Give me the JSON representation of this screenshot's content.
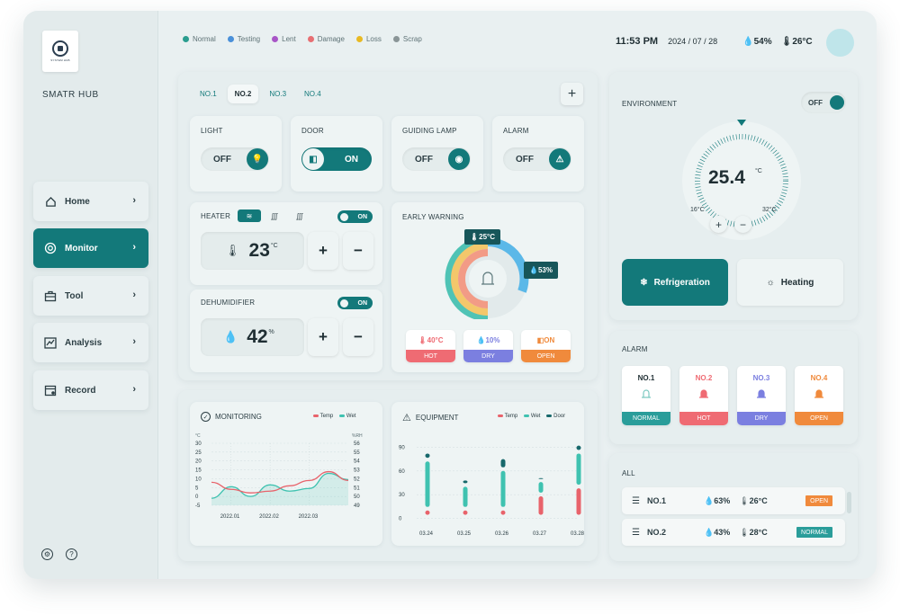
{
  "brand": {
    "logo_text": "SYSTEM HUB",
    "title": "SMATR HUB"
  },
  "nav": [
    {
      "label": "Home",
      "icon": "home-icon"
    },
    {
      "label": "Monitor",
      "icon": "power-icon",
      "active": true
    },
    {
      "label": "Tool",
      "icon": "toolbox-icon"
    },
    {
      "label": "Analysis",
      "icon": "chart-icon"
    },
    {
      "label": "Record",
      "icon": "calendar-icon"
    }
  ],
  "status_legend": [
    {
      "label": "Normal",
      "color": "#2a9d8f"
    },
    {
      "label": "Testing",
      "color": "#4a90d9"
    },
    {
      "label": "Lent",
      "color": "#a855c7"
    },
    {
      "label": "Damage",
      "color": "#e76f73"
    },
    {
      "label": "Loss",
      "color": "#e8b923"
    },
    {
      "label": "Scrap",
      "color": "#8a9597"
    }
  ],
  "header": {
    "time": "11:53 PM",
    "date": "2024 / 07 / 28",
    "humidity": "54%",
    "temperature": "26°C"
  },
  "tabs": [
    "NO.1",
    "NO.2",
    "NO.3",
    "NO.4"
  ],
  "devices": [
    {
      "label": "LIGHT",
      "state": "OFF",
      "icon": "bulb-icon"
    },
    {
      "label": "DOOR",
      "state": "ON",
      "icon": "door-icon"
    },
    {
      "label": "GUIDING LAMP",
      "state": "OFF",
      "icon": "lamp-icon"
    },
    {
      "label": "ALARM",
      "state": "OFF",
      "icon": "siren-icon"
    }
  ],
  "heater": {
    "label": "HEATER",
    "switch": "ON",
    "value": "23",
    "unit": "°C"
  },
  "dehumidifier": {
    "label": "DEHUMIDIFIER",
    "switch": "ON",
    "value": "42",
    "unit": "%"
  },
  "early_warning": {
    "label": "EARLY WARNING",
    "temp_badge": "25°C",
    "hum_badge": "53%",
    "tags": [
      {
        "value": "40°C",
        "status": "HOT",
        "color": "#ef6b73"
      },
      {
        "value": "10%",
        "status": "DRY",
        "color": "#7b7fe0"
      },
      {
        "value": "ON",
        "status": "OPEN",
        "color": "#f08a3c"
      }
    ]
  },
  "environment": {
    "label": "ENVIRONMENT",
    "switch": "OFF",
    "value": "25.4",
    "unit": "°C",
    "min": "16°C",
    "max": "32°C",
    "mode_cool": "Refrigeration",
    "mode_heat": "Heating"
  },
  "alarm": {
    "label": "ALARM",
    "items": [
      {
        "name": "NO.1",
        "status": "NORMAL",
        "color": "#2a9d9a"
      },
      {
        "name": "NO.2",
        "status": "HOT",
        "color": "#ef6b73"
      },
      {
        "name": "NO.3",
        "status": "DRY",
        "color": "#7b7fe0"
      },
      {
        "name": "NO.4",
        "status": "OPEN",
        "color": "#f08a3c"
      }
    ]
  },
  "all": {
    "label": "ALL",
    "rows": [
      {
        "name": "NO.1",
        "humidity": "63%",
        "temp": "26°C",
        "status": "OPEN",
        "color": "#f08a3c"
      },
      {
        "name": "NO.2",
        "humidity": "43%",
        "temp": "28°C",
        "status": "NORMAL",
        "color": "#2a9d9a"
      }
    ]
  },
  "monitoring": {
    "title": "MONITORING",
    "legend_temp": "Temp",
    "legend_wet": "Wet",
    "left_unit": "°C",
    "right_unit": "%RH"
  },
  "equipment": {
    "title": "EQUIPMENT",
    "legend_temp": "Temp",
    "legend_wet": "Wet",
    "legend_door": "Door"
  },
  "chart_data": [
    {
      "type": "line",
      "title": "MONITORING",
      "x_ticks": [
        "2022.01",
        "2022.02",
        "2022.03"
      ],
      "y_left_ticks": [
        "30",
        "25",
        "20",
        "15",
        "10",
        "5",
        "0",
        "-5"
      ],
      "y_right_ticks": [
        "56",
        "55",
        "54",
        "53",
        "52",
        "51",
        "50",
        "49"
      ],
      "ylim_left": [
        -5,
        30
      ],
      "ylim_right": [
        49,
        56
      ],
      "series": [
        {
          "name": "Temp",
          "color": "#e8636b",
          "axis": "left",
          "x": [
            0,
            0.5,
            1,
            1.5,
            2,
            2.5,
            3,
            3.5
          ],
          "values": [
            8,
            4,
            2,
            3,
            6,
            9,
            14,
            9
          ]
        },
        {
          "name": "Wet",
          "color": "#3fc2b0",
          "axis": "right",
          "x": [
            0,
            0.5,
            1,
            1.5,
            2,
            2.5,
            3,
            3.5
          ],
          "values": [
            49.8,
            51.1,
            50.0,
            51.3,
            50.6,
            50.9,
            52.6,
            51.9
          ]
        }
      ]
    },
    {
      "type": "bar",
      "title": "EQUIPMENT",
      "categories": [
        "03.24",
        "03.25",
        "03.26",
        "03.27",
        "03.28"
      ],
      "y_ticks": [
        "90",
        "60",
        "30",
        "0"
      ],
      "ylim": [
        -5,
        95
      ],
      "series": [
        {
          "name": "Temp",
          "color": "#e8636b",
          "values": [
            10,
            10,
            10,
            28,
            38
          ]
        },
        {
          "name": "Wet",
          "color": "#3fc2b0",
          "values": [
            62,
            30,
            50,
            18,
            44
          ]
        },
        {
          "name": "Door",
          "color": "#17686b",
          "values": [
            10,
            8,
            15,
            5,
            10
          ]
        }
      ]
    }
  ]
}
